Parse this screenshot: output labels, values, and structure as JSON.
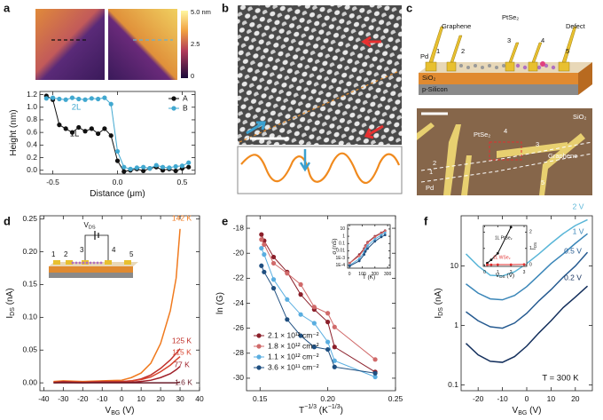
{
  "figure": {
    "panels": [
      "a",
      "b",
      "c",
      "d",
      "e",
      "f"
    ],
    "afm": {
      "colorbar": [
        "5.0 nm",
        "2.5",
        "0"
      ]
    },
    "schematic": {
      "labels": [
        "Graphene",
        "PtSe₂",
        "Defect",
        "Pd",
        "1",
        "2",
        "3",
        "4",
        "5",
        "SiO₂",
        "p-Silicon"
      ]
    },
    "photo": {
      "labels": [
        "SiO₂",
        "PtSe₂",
        "Graphene",
        "Pd",
        "1",
        "2",
        "3",
        "4",
        "5"
      ]
    },
    "device_inset": {
      "bias": [
        {
          "text": "V"
        },
        {
          "text": "DS",
          "script": "sub"
        }
      ],
      "electrodes": [
        "1",
        "2",
        "3",
        "4",
        "5"
      ]
    }
  },
  "chart_data": [
    {
      "type": "line",
      "markers": true,
      "legend": "upper right",
      "xlabel": [
        {
          "text": "Distance (μm)"
        }
      ],
      "ylabel": [
        {
          "text": "Height (nm)"
        }
      ],
      "xlim": [
        -0.6,
        0.6
      ],
      "ylim": [
        -0.06,
        1.25
      ],
      "xticks": [
        -0.5,
        {
          "value": 0,
          "label": "0.0"
        },
        0.5
      ],
      "yticks": [
        {
          "value": 0,
          "label": "0.0"
        },
        0.2,
        0.4,
        0.6,
        0.8,
        {
          "value": 1,
          "label": "1.0"
        },
        1.2
      ],
      "annotations": [
        {
          "text": "2L",
          "color": "#41a8d0"
        },
        {
          "text": "1L",
          "color": "#111111"
        }
      ],
      "x": [
        -0.55,
        -0.5,
        -0.45,
        -0.4,
        -0.35,
        -0.3,
        -0.25,
        -0.2,
        -0.15,
        -0.1,
        -0.05,
        0,
        0.05,
        0.1,
        0.15,
        0.2,
        0.25,
        0.3,
        0.35,
        0.4,
        0.45,
        0.5,
        0.55
      ],
      "series": [
        {
          "name": "A",
          "color": "#111111",
          "values": [
            1.18,
            1.12,
            0.72,
            0.66,
            0.6,
            0.68,
            0.62,
            0.66,
            0.58,
            0.66,
            0.55,
            0.15,
            -0.02,
            0,
            0.02,
            -0.01,
            0.03,
            0.05,
            0,
            0.02,
            -0.01,
            0.03,
            0.05
          ]
        },
        {
          "name": "B",
          "color": "#41a8d0",
          "values": [
            1.14,
            1.15,
            1.13,
            1.12,
            1.15,
            1.13,
            1.12,
            1.14,
            1.13,
            1.15,
            1.05,
            0.3,
            0.05,
            0.02,
            0.04,
            0.05,
            0.03,
            0.08,
            0.05,
            0.04,
            0.06,
            0.07,
            0.12
          ]
        }
      ]
    },
    {
      "type": "line",
      "markers": false,
      "legend": "line-end",
      "xlabel": [
        {
          "text": "V"
        },
        {
          "text": "BG",
          "script": "sub"
        },
        {
          "text": " (V)"
        }
      ],
      "ylabel": [
        {
          "text": "I"
        },
        {
          "text": "DS",
          "script": "sub"
        },
        {
          "text": " (nA)"
        }
      ],
      "xlim": [
        -42,
        40
      ],
      "ylim": [
        -0.012,
        0.255
      ],
      "xticks": [
        -40,
        -30,
        -20,
        -10,
        0,
        10,
        20,
        30,
        40
      ],
      "yticks": [
        {
          "value": 0,
          "label": "0.00"
        },
        0.05,
        {
          "value": 0.1,
          "label": "0.10"
        },
        0.15,
        {
          "value": 0.2,
          "label": "0.20"
        },
        0.25
      ],
      "x": [
        -35,
        -30,
        -20,
        -10,
        0,
        5,
        10,
        15,
        20,
        25,
        28,
        30
      ],
      "series": [
        {
          "name": "142 K",
          "color": "#f07a1e",
          "values": [
            0.002,
            0.003,
            0.002,
            0.003,
            0.004,
            0.008,
            0.015,
            0.03,
            0.06,
            0.11,
            0.16,
            0.235
          ]
        },
        {
          "name": "125 K",
          "color": "#c0302a",
          "values": [
            0.001,
            0.002,
            0.001,
            0.002,
            0.002,
            0.003,
            0.006,
            0.012,
            0.022,
            0.035,
            0.045,
            0.052
          ]
        },
        {
          "name": "115 K",
          "color": "#d8452f",
          "values": [
            0.001,
            0.001,
            0.001,
            0.002,
            0.002,
            0.003,
            0.005,
            0.009,
            0.017,
            0.027,
            0.035,
            0.04
          ]
        },
        {
          "name": "77 K",
          "color": "#a0202a",
          "values": [
            0,
            0.001,
            0,
            0.001,
            0.001,
            0.001,
            0.002,
            0.004,
            0.008,
            0.014,
            0.02,
            0.025
          ]
        },
        {
          "name": "1.6 K",
          "color": "#6b1d2a",
          "values": [
            0,
            0,
            0,
            0,
            0,
            0,
            0,
            0,
            0,
            0,
            0,
            0.001
          ]
        }
      ]
    },
    {
      "type": "line",
      "markers": true,
      "legend": "lower left",
      "xlabel": [
        {
          "text": "T"
        },
        {
          "text": "−1/3",
          "script": "sup"
        },
        {
          "text": " (K"
        },
        {
          "text": "−1/3",
          "script": "sup"
        },
        {
          "text": ")"
        }
      ],
      "ylabel": [
        {
          "text": "ln ("
        },
        {
          "text": "G"
        },
        {
          "text": ")"
        }
      ],
      "xlim": [
        0.14,
        0.25
      ],
      "ylim": [
        -31,
        -17
      ],
      "xticks": [
        0.15,
        {
          "value": 0.2,
          "label": "0.20"
        },
        0.25
      ],
      "yticks": [
        -18,
        -20,
        -22,
        -24,
        -26,
        -28,
        -30
      ],
      "x": [
        0.151,
        0.153,
        0.16,
        0.17,
        0.18,
        0.19,
        0.2,
        0.205,
        0.235
      ],
      "series": [
        {
          "name": "2.1 × 10¹² cm⁻²",
          "color": "#8b1f2a",
          "values": [
            -18.5,
            -19,
            -20.3,
            -21.5,
            -23.3,
            -24.5,
            -25.5,
            -27.5,
            -29.5
          ]
        },
        {
          "name": "1.8 × 10¹² cm⁻²",
          "color": "#d06a6a",
          "values": [
            -18.9,
            -19.3,
            -20.8,
            -21.6,
            -22.5,
            -24.3,
            -24.8,
            -25.9,
            -28.5
          ]
        },
        {
          "name": "1.1 × 10¹² cm⁻²",
          "color": "#5aaee0",
          "values": [
            -19.6,
            -20.1,
            -22.1,
            -23.7,
            -24.9,
            -25.6,
            -27.1,
            -28.6,
            -29.9
          ]
        },
        {
          "name": "3.6 × 10¹¹ cm⁻²",
          "color": "#1f4f80",
          "values": [
            -21,
            -21.5,
            -22.8,
            -25.3,
            -26.6,
            -27.5,
            -27.7,
            -29.1,
            -29.6
          ]
        }
      ]
    },
    {
      "type": "line",
      "markers": true,
      "ylog": true,
      "xlabel": [
        {
          "text": "T"
        },
        {
          "text": " (K)"
        }
      ],
      "ylabel": [
        {
          "text": "σ (nS)"
        }
      ],
      "xlim": [
        -15,
        320
      ],
      "ylim": [
        4e-05,
        40
      ],
      "xticks": [
        0,
        100,
        200,
        300
      ],
      "yticks": [
        10,
        1,
        0.1,
        0.01,
        {
          "value": 0.001,
          "label": "1E-3"
        },
        {
          "value": 0.0001,
          "label": "1E-4"
        }
      ],
      "x": [
        1.6,
        77,
        115,
        125,
        142,
        200,
        250,
        280
      ],
      "series": [
        {
          "color": "#8b1f2a",
          "values": [
            0.0002,
            0.003,
            0.02,
            0.05,
            0.15,
            1,
            3,
            6
          ]
        },
        {
          "color": "#d06a6a",
          "values": [
            0.0002,
            0.002,
            0.015,
            0.04,
            0.12,
            0.8,
            2.5,
            5
          ]
        },
        {
          "color": "#5aaee0",
          "values": [
            0.0001,
            0.0008,
            0.006,
            0.015,
            0.05,
            0.4,
            1.5,
            3
          ]
        },
        {
          "color": "#1f4f80",
          "values": [
            8e-05,
            0.0004,
            0.003,
            0.008,
            0.02,
            0.2,
            0.8,
            1.5
          ]
        }
      ]
    },
    {
      "type": "line",
      "markers": false,
      "ylog": true,
      "legend": "line-end",
      "xlabel": [
        {
          "text": "V"
        },
        {
          "text": "BG",
          "script": "sub"
        },
        {
          "text": " (V)"
        }
      ],
      "ylabel": [
        {
          "text": "I"
        },
        {
          "text": "DS",
          "script": "sub"
        },
        {
          "text": " (nA)"
        }
      ],
      "xlim": [
        -27,
        27
      ],
      "ylim": [
        0.08,
        70
      ],
      "xticks": [
        -20,
        -10,
        0,
        10,
        20
      ],
      "yticks": [
        0.1,
        1,
        10
      ],
      "annotations": [
        {
          "text": "T = 300 K",
          "color": "#111111"
        }
      ],
      "x": [
        -25,
        -20,
        -15,
        -10,
        -5,
        0,
        5,
        10,
        15,
        20,
        25
      ],
      "series": [
        {
          "name": "2 V",
          "color": "#5ab6d8",
          "values": [
            16,
            10,
            7,
            6.8,
            8,
            11,
            16,
            24,
            35,
            48,
            60
          ]
        },
        {
          "name": "1 V",
          "color": "#3a86b8",
          "values": [
            5,
            3.5,
            2.8,
            2.7,
            3.2,
            4.5,
            7,
            11,
            16,
            24,
            35
          ]
        },
        {
          "name": "0.5 V",
          "color": "#255a90",
          "values": [
            1.7,
            1.2,
            0.95,
            0.9,
            1.1,
            1.6,
            2.6,
            4,
            6.5,
            10,
            17
          ]
        },
        {
          "name": "0.2 V",
          "color": "#132f5c",
          "values": [
            0.5,
            0.32,
            0.25,
            0.24,
            0.3,
            0.45,
            0.75,
            1.2,
            2,
            3,
            4.6
          ]
        }
      ]
    },
    {
      "type": "line",
      "markers": true,
      "legend": "line-end",
      "yaxis_side": "right",
      "xlabel": [
        {
          "text": "V"
        },
        {
          "text": "DS",
          "script": "sub"
        },
        {
          "text": " (V)"
        }
      ],
      "ylabel": [
        {
          "text": "I"
        },
        {
          "text": "DS",
          "script": "sub"
        }
      ],
      "xlim": [
        -0.1,
        3.2
      ],
      "ylim": [
        -0.1,
        2.4
      ],
      "xticks": [
        0,
        1,
        2,
        3
      ],
      "yticks": [
        0,
        1,
        2
      ],
      "series": [
        {
          "name": "1L PtSe₂",
          "color": "#111111",
          "x": [
            0.2,
            0.5,
            1,
            2
          ],
          "values": [
            0.1,
            0.3,
            0.7,
            2.3
          ]
        },
        {
          "name": "1L WSe₂",
          "color": "#e03030",
          "x": [
            0.2,
            0.5,
            1,
            2,
            3
          ],
          "values": [
            0,
            0,
            0.01,
            0.01,
            0.02
          ]
        }
      ]
    }
  ]
}
